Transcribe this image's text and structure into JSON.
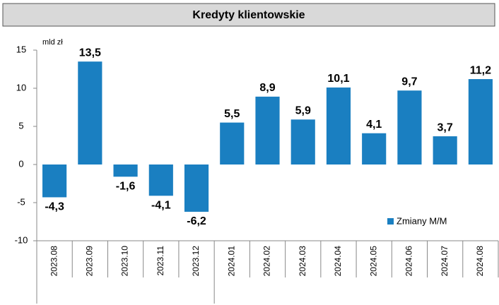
{
  "chart_data": {
    "type": "bar",
    "title": "Kredyty klientowskie",
    "y_label": "mld zł",
    "categories": [
      "2023.08",
      "2023.09",
      "2023.10",
      "2023.11",
      "2023.12",
      "2024.01",
      "2024.02",
      "2024.03",
      "2024.04",
      "2024.05",
      "2024.06",
      "2024.07",
      "2024.08"
    ],
    "series": [
      {
        "name": "Zmiany M/M",
        "color": "#1a7fc1",
        "values": [
          -4.3,
          13.5,
          -1.6,
          -4.1,
          -6.2,
          5.5,
          8.9,
          5.9,
          10.1,
          4.1,
          9.7,
          3.7,
          11.2
        ],
        "value_labels": [
          "-4,3",
          "13,5",
          "-1,6",
          "-4,1",
          "-6,2",
          "5,5",
          "8,9",
          "5,9",
          "10,1",
          "4,1",
          "9,7",
          "3,7",
          "11,2"
        ]
      }
    ],
    "ylim": [
      -10,
      15
    ],
    "yticks": [
      -10,
      -5,
      0,
      5,
      10,
      15
    ],
    "grid": false,
    "legend": "lower right"
  }
}
